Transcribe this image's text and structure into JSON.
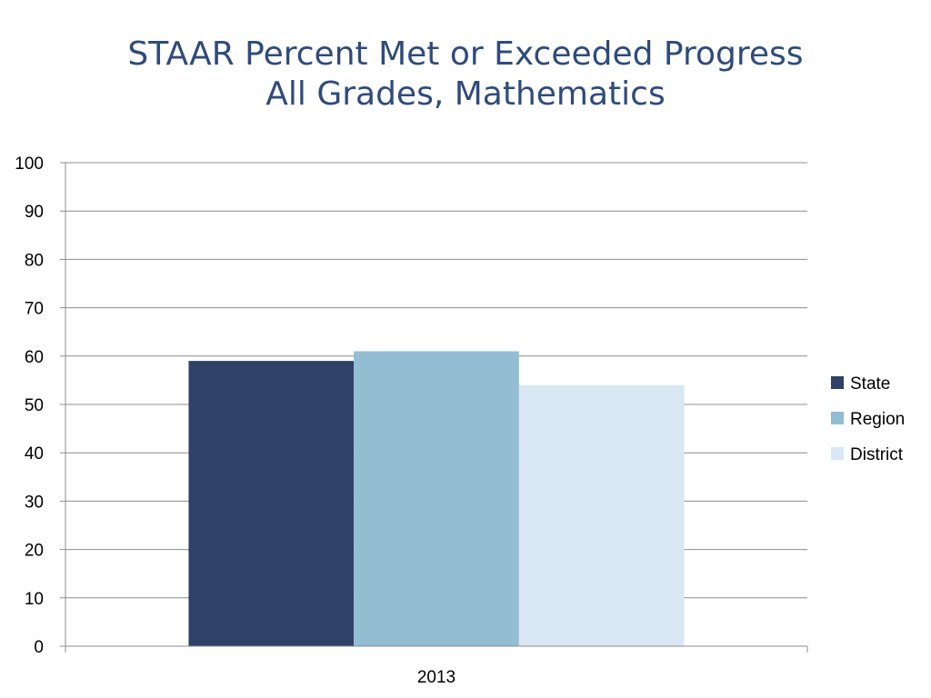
{
  "slide": {
    "title_line1": "STAAR Percent Met or Exceeded Progress",
    "title_line2": "All Grades, Mathematics"
  },
  "chart_data": {
    "type": "bar",
    "categories": [
      "2013"
    ],
    "series": [
      {
        "name": "State",
        "values": [
          59
        ],
        "color": "#2f4168"
      },
      {
        "name": "Region",
        "values": [
          61
        ],
        "color": "#92bdd3"
      },
      {
        "name": "District",
        "values": [
          54
        ],
        "color": "#d8e7f3"
      }
    ],
    "ylim": [
      0,
      100
    ],
    "yticks": [
      0,
      10,
      20,
      30,
      40,
      50,
      60,
      70,
      80,
      90,
      100
    ],
    "grid": true,
    "legend_position": "right",
    "title": "STAAR Percent Met or Exceeded Progress All Grades, Mathematics",
    "xlabel": "",
    "ylabel": ""
  },
  "colors": {
    "title": "#2f4b7c",
    "gridline": "#8c8c8c",
    "axis": "#8c8c8c"
  }
}
